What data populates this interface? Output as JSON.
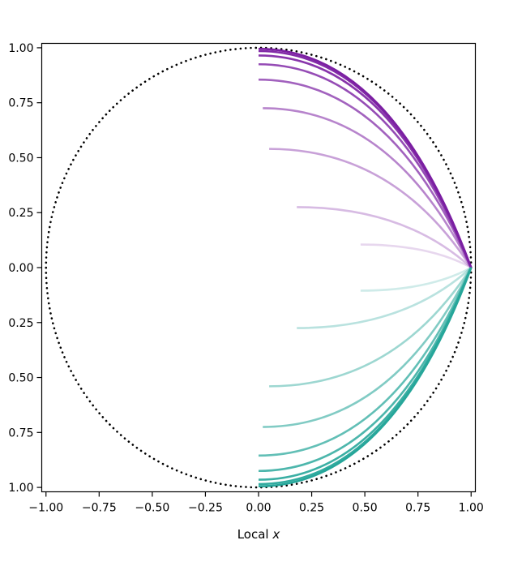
{
  "chart_data": {
    "type": "line",
    "xlabel_main": "Local ",
    "xlabel_var": "x",
    "ylabel": "",
    "xlim": [
      -1.02,
      1.02
    ],
    "ylim": [
      -1.02,
      1.02
    ],
    "xticks": [
      {
        "value": -1.0,
        "label": "−1.00"
      },
      {
        "value": -0.75,
        "label": "−0.75"
      },
      {
        "value": -0.5,
        "label": "−0.50"
      },
      {
        "value": -0.25,
        "label": "−0.25"
      },
      {
        "value": 0.0,
        "label": "0.00"
      },
      {
        "value": 0.25,
        "label": "0.25"
      },
      {
        "value": 0.5,
        "label": "0.50"
      },
      {
        "value": 0.75,
        "label": "0.75"
      },
      {
        "value": 1.0,
        "label": "1.00"
      }
    ],
    "yticks": [
      {
        "value": 1.0,
        "label": "1.00"
      },
      {
        "value": 0.75,
        "label": "0.75"
      },
      {
        "value": 0.5,
        "label": "0.50"
      },
      {
        "value": 0.25,
        "label": "0.25"
      },
      {
        "value": 0.0,
        "label": "0.00"
      },
      {
        "value": -0.25,
        "label": "0.25"
      },
      {
        "value": -0.5,
        "label": "0.50"
      },
      {
        "value": -0.75,
        "label": "0.75"
      },
      {
        "value": -1.0,
        "label": "1.00"
      }
    ],
    "reference_circle": {
      "radius": 1.0,
      "style": "dotted",
      "color": "#000000"
    },
    "grid": false,
    "legend": "none",
    "end_point": [
      1.0,
      0.0
    ],
    "series": [
      {
        "x0": 0.0,
        "y0": 0.995,
        "color": "#7b1fa2",
        "opacity": 1.0
      },
      {
        "x0": 0.0,
        "y0": 0.985,
        "color": "#7b1fa2",
        "opacity": 0.95
      },
      {
        "x0": 0.0,
        "y0": 0.965,
        "color": "#7b1fa2",
        "opacity": 0.9
      },
      {
        "x0": 0.0,
        "y0": 0.925,
        "color": "#7b1fa2",
        "opacity": 0.8
      },
      {
        "x0": 0.0,
        "y0": 0.855,
        "color": "#7b1fa2",
        "opacity": 0.7
      },
      {
        "x0": 0.02,
        "y0": 0.725,
        "color": "#7b1fa2",
        "opacity": 0.55
      },
      {
        "x0": 0.05,
        "y0": 0.54,
        "color": "#7b1fa2",
        "opacity": 0.42
      },
      {
        "x0": 0.18,
        "y0": 0.275,
        "color": "#7b1fa2",
        "opacity": 0.3
      },
      {
        "x0": 0.48,
        "y0": 0.105,
        "color": "#7b1fa2",
        "opacity": 0.18
      },
      {
        "x0": 0.48,
        "y0": -0.105,
        "color": "#26a69a",
        "opacity": 0.22
      },
      {
        "x0": 0.18,
        "y0": -0.275,
        "color": "#26a69a",
        "opacity": 0.32
      },
      {
        "x0": 0.05,
        "y0": -0.54,
        "color": "#26a69a",
        "opacity": 0.45
      },
      {
        "x0": 0.02,
        "y0": -0.725,
        "color": "#26a69a",
        "opacity": 0.58
      },
      {
        "x0": 0.0,
        "y0": -0.855,
        "color": "#26a69a",
        "opacity": 0.72
      },
      {
        "x0": 0.0,
        "y0": -0.925,
        "color": "#26a69a",
        "opacity": 0.82
      },
      {
        "x0": 0.0,
        "y0": -0.965,
        "color": "#26a69a",
        "opacity": 0.9
      },
      {
        "x0": 0.0,
        "y0": -0.985,
        "color": "#26a69a",
        "opacity": 0.95
      },
      {
        "x0": 0.0,
        "y0": -0.995,
        "color": "#26a69a",
        "opacity": 1.0
      }
    ]
  }
}
